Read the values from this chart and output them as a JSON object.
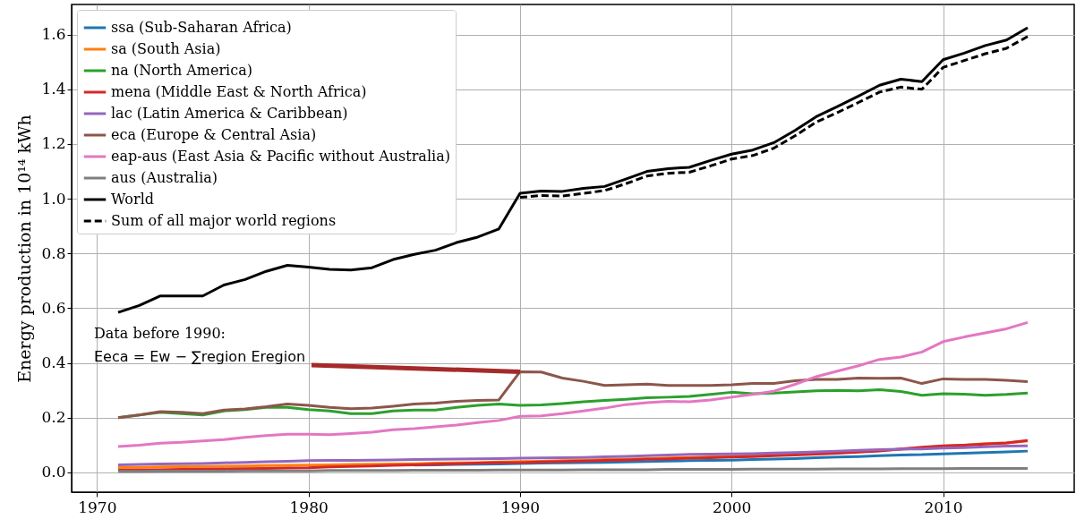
{
  "chart_data": {
    "type": "line",
    "ylabel": "Energy production in  10¹⁴ kWh",
    "x": [
      1971,
      1972,
      1973,
      1974,
      1975,
      1976,
      1977,
      1978,
      1979,
      1980,
      1981,
      1982,
      1983,
      1984,
      1985,
      1986,
      1987,
      1988,
      1989,
      1990,
      1991,
      1992,
      1993,
      1994,
      1995,
      1996,
      1997,
      1998,
      1999,
      2000,
      2001,
      2002,
      2003,
      2004,
      2005,
      2006,
      2007,
      2008,
      2009,
      2010,
      2011,
      2012,
      2013,
      2014
    ],
    "series": [
      {
        "name": "ssa (Sub-Saharan Africa)",
        "color": "#1f77b4",
        "values": [
          null,
          null,
          null,
          null,
          null,
          null,
          null,
          null,
          null,
          null,
          null,
          null,
          null,
          null,
          0.027,
          0.028,
          0.029,
          0.03,
          0.031,
          0.033,
          0.034,
          0.035,
          0.036,
          0.037,
          0.038,
          0.04,
          0.042,
          0.043,
          0.044,
          0.045,
          0.047,
          0.049,
          0.051,
          0.054,
          0.056,
          0.058,
          0.061,
          0.064,
          0.065,
          0.068,
          0.07,
          0.073,
          0.075,
          0.078
        ]
      },
      {
        "name": "sa (South Asia)",
        "color": "#ff7f0e",
        "values": [
          0.018,
          0.019,
          0.02,
          0.021,
          0.022,
          0.023,
          0.024,
          0.025,
          0.026,
          0.027,
          0.028,
          0.029,
          0.03,
          0.031,
          0.032,
          0.034,
          0.035,
          0.036,
          0.038,
          0.04,
          0.041,
          0.043,
          0.045,
          0.047,
          0.049,
          0.051,
          0.053,
          0.055,
          0.057,
          0.059,
          0.061,
          0.063,
          0.066,
          0.069,
          0.072,
          0.076,
          0.08,
          0.085,
          0.09,
          0.096,
          0.1,
          0.105,
          0.108,
          0.115
        ]
      },
      {
        "name": "na (North America)",
        "color": "#2ca02c",
        "values": [
          0.2,
          0.21,
          0.22,
          0.215,
          0.21,
          0.225,
          0.23,
          0.238,
          0.238,
          0.23,
          0.225,
          0.215,
          0.215,
          0.225,
          0.228,
          0.228,
          0.238,
          0.245,
          0.25,
          0.245,
          0.247,
          0.252,
          0.258,
          0.263,
          0.267,
          0.273,
          0.275,
          0.278,
          0.285,
          0.293,
          0.288,
          0.29,
          0.294,
          0.298,
          0.3,
          0.298,
          0.302,
          0.296,
          0.282,
          0.288,
          0.286,
          0.282,
          0.285,
          0.29
        ]
      },
      {
        "name": "mena (Middle East & North Africa)",
        "color": "#d62728",
        "values": [
          0.008,
          0.009,
          0.01,
          0.011,
          0.012,
          0.013,
          0.014,
          0.015,
          0.016,
          0.017,
          0.02,
          0.022,
          0.024,
          0.026,
          0.028,
          0.03,
          0.032,
          0.034,
          0.036,
          0.036,
          0.038,
          0.04,
          0.042,
          0.044,
          0.046,
          0.048,
          0.05,
          0.052,
          0.054,
          0.056,
          0.058,
          0.061,
          0.064,
          0.067,
          0.07,
          0.074,
          0.078,
          0.086,
          0.092,
          0.097,
          0.1,
          0.104,
          0.108,
          0.117
        ]
      },
      {
        "name": "lac (Latin America & Caribbean)",
        "color": "#9467bd",
        "values": [
          0.028,
          0.029,
          0.031,
          0.032,
          0.033,
          0.035,
          0.037,
          0.039,
          0.041,
          0.043,
          0.044,
          0.044,
          0.045,
          0.046,
          0.047,
          0.048,
          0.049,
          0.05,
          0.051,
          0.052,
          0.053,
          0.054,
          0.055,
          0.057,
          0.059,
          0.061,
          0.064,
          0.066,
          0.067,
          0.068,
          0.069,
          0.071,
          0.073,
          0.075,
          0.078,
          0.081,
          0.083,
          0.085,
          0.086,
          0.089,
          0.091,
          0.094,
          0.096,
          0.097
        ]
      },
      {
        "name": "eca (Europe & Central Asia)",
        "color": "#8c564b",
        "values": [
          0.2,
          0.21,
          0.222,
          0.22,
          0.215,
          0.228,
          0.232,
          0.24,
          0.25,
          0.245,
          0.238,
          0.233,
          0.235,
          0.242,
          0.25,
          0.253,
          0.26,
          0.263,
          0.265,
          0.368,
          0.367,
          0.345,
          0.333,
          0.318,
          0.32,
          0.323,
          0.318,
          0.318,
          0.318,
          0.32,
          0.325,
          0.325,
          0.335,
          0.34,
          0.34,
          0.345,
          0.344,
          0.345,
          0.325,
          0.342,
          0.34,
          0.34,
          0.337,
          0.332
        ]
      },
      {
        "name": "eap-aus (East Asia & Pacific without Australia)",
        "color": "#e377c2",
        "values": [
          0.095,
          0.1,
          0.107,
          0.11,
          0.115,
          0.12,
          0.128,
          0.135,
          0.14,
          0.14,
          0.138,
          0.142,
          0.147,
          0.156,
          0.16,
          0.167,
          0.173,
          0.182,
          0.19,
          0.205,
          0.207,
          0.215,
          0.225,
          0.235,
          0.248,
          0.255,
          0.26,
          0.258,
          0.265,
          0.275,
          0.285,
          0.297,
          0.322,
          0.35,
          0.37,
          0.39,
          0.413,
          0.422,
          0.44,
          0.478,
          0.495,
          0.51,
          0.525,
          0.548
        ]
      },
      {
        "name": "aus (Australia)",
        "color": "#7f7f7f",
        "values": [
          0.004,
          0.004,
          0.005,
          0.005,
          0.005,
          0.005,
          0.006,
          0.006,
          0.006,
          0.006,
          0.007,
          0.007,
          0.007,
          0.007,
          0.008,
          0.008,
          0.008,
          0.008,
          0.009,
          0.009,
          0.009,
          0.009,
          0.01,
          0.01,
          0.01,
          0.01,
          0.011,
          0.011,
          0.011,
          0.011,
          0.012,
          0.012,
          0.012,
          0.012,
          0.013,
          0.013,
          0.013,
          0.014,
          0.014,
          0.014,
          0.015,
          0.015,
          0.015,
          0.015
        ]
      },
      {
        "name": "World",
        "color": "#000000",
        "values": [
          0.585,
          0.61,
          0.645,
          0.645,
          0.645,
          0.685,
          0.705,
          0.735,
          0.757,
          0.75,
          0.742,
          0.74,
          0.748,
          0.778,
          0.797,
          0.812,
          0.84,
          0.86,
          0.89,
          1.02,
          1.028,
          1.027,
          1.038,
          1.045,
          1.072,
          1.1,
          1.11,
          1.115,
          1.14,
          1.163,
          1.178,
          1.205,
          1.25,
          1.3,
          1.337,
          1.375,
          1.415,
          1.437,
          1.428,
          1.508,
          1.532,
          1.56,
          1.58,
          1.625
        ]
      },
      {
        "name": "Sum of all major world regions",
        "color": "#000000",
        "line_style": "dashed",
        "values": [
          null,
          null,
          null,
          null,
          null,
          null,
          null,
          null,
          null,
          null,
          null,
          null,
          null,
          null,
          null,
          null,
          null,
          null,
          null,
          1.005,
          1.012,
          1.01,
          1.02,
          1.03,
          1.055,
          1.083,
          1.093,
          1.097,
          1.12,
          1.145,
          1.158,
          1.185,
          1.23,
          1.28,
          1.315,
          1.352,
          1.39,
          1.408,
          1.4,
          1.48,
          1.505,
          1.53,
          1.55,
          1.593
        ]
      }
    ],
    "xlim": [
      1968.8,
      2016.2
    ],
    "xticks": [
      1970,
      1980,
      1990,
      2000,
      2010
    ],
    "ylim": [
      -0.072,
      1.71
    ],
    "yticks": [
      {
        "value": 0,
        "label": "0.0"
      },
      {
        "value": 0.2,
        "label": "0.2"
      },
      {
        "value": 0.4,
        "label": "0.4"
      },
      {
        "value": 0.6,
        "label": "0.6"
      },
      {
        "value": 0.8,
        "label": "0.8"
      },
      {
        "value": 1.0,
        "label": "1.0"
      },
      {
        "value": 1.2,
        "label": "1.2"
      },
      {
        "value": 1.4,
        "label": "1.4"
      },
      {
        "value": 1.6,
        "label": "1.6"
      }
    ],
    "annotations": [
      "Data before 1990:",
      {
        "text": "Eeca = Ew − ∑region Eregion",
        "x": 1990,
        "y": 0.368
      }
    ],
    "grid": true,
    "legend": "top left",
    "line_style": "solid",
    "marker": "none"
  }
}
